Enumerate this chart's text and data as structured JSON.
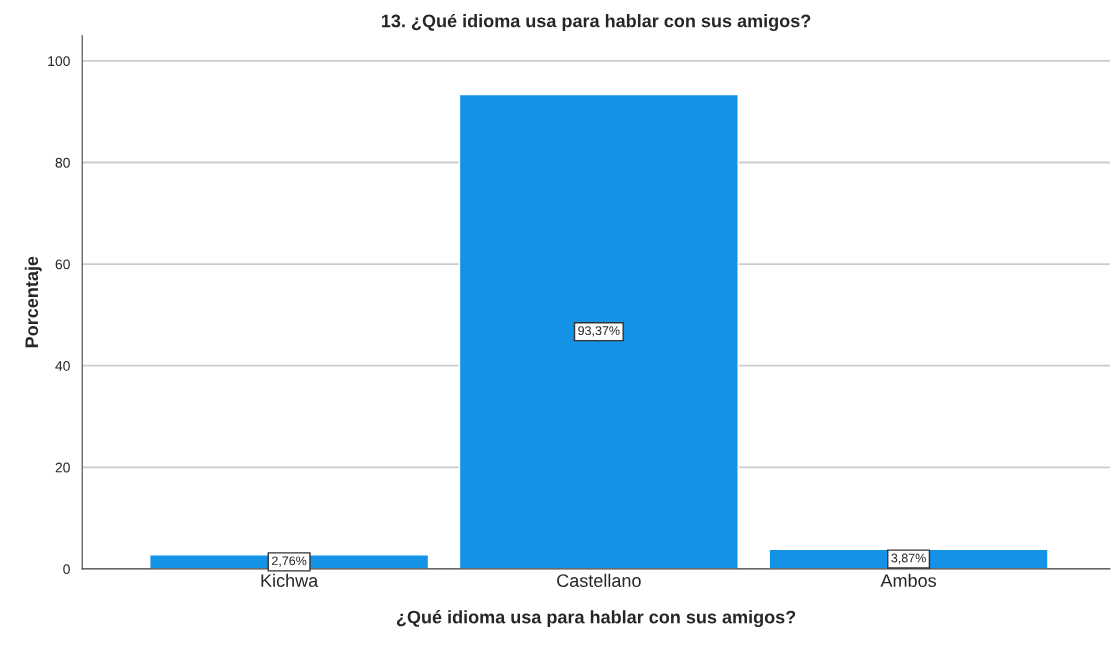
{
  "chart_data": {
    "type": "bar",
    "title": "13. ¿Qué idioma usa para hablar con sus amigos?",
    "xlabel": "¿Qué idioma usa para hablar con sus amigos?",
    "ylabel": "Porcentaje",
    "categories": [
      "Kichwa",
      "Castellano",
      "Ambos"
    ],
    "values": [
      2.76,
      93.37,
      3.87
    ],
    "value_labels": [
      "2,76%",
      "93,37%",
      "3,87%"
    ],
    "color": "#1492e6",
    "ylim": [
      0,
      105
    ],
    "yticks": [
      0,
      20,
      40,
      60,
      80,
      100
    ],
    "grid": "y",
    "legend": false
  }
}
